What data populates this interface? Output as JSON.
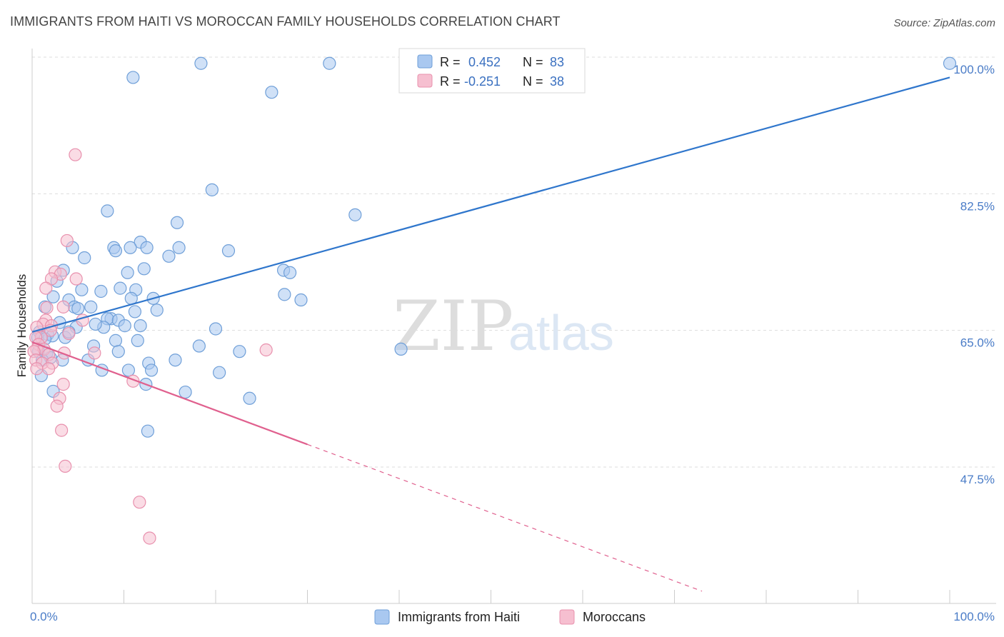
{
  "title": "IMMIGRANTS FROM HAITI VS MOROCCAN FAMILY HOUSEHOLDS CORRELATION CHART",
  "source": "Source: ZipAtlas.com",
  "watermark": {
    "zip": "ZIP",
    "atlas": "atlas"
  },
  "colors": {
    "haiti_fill": "#a9c8f0",
    "haiti_stroke": "#6f9fd8",
    "haiti_line": "#2f76cc",
    "moroccan_fill": "#f6bfd0",
    "moroccan_stroke": "#e890ad",
    "moroccan_line": "#e0608e",
    "grid": "#dddddd",
    "axis_label": "#4a7cc7"
  },
  "legend": {
    "haiti": {
      "r_label": "R =",
      "r_value": "0.452",
      "n_label": "N =",
      "n_value": "83"
    },
    "moroccan": {
      "r_label": "R =",
      "r_value": "-0.251",
      "n_label": "N =",
      "n_value": "38"
    }
  },
  "chart_data": {
    "type": "scatter",
    "title": "IMMIGRANTS FROM HAITI VS MOROCCAN FAMILY HOUSEHOLDS CORRELATION CHART",
    "xlabel": "",
    "ylabel": "Family Households",
    "xlim": [
      0,
      100
    ],
    "ylim": [
      30,
      100
    ],
    "x_tick_labels": [
      "0.0%",
      "100.0%"
    ],
    "y_ticks": [
      {
        "value": 100,
        "label": "100.0%"
      },
      {
        "value": 82.5,
        "label": "82.5%"
      },
      {
        "value": 65.0,
        "label": "65.0%"
      },
      {
        "value": 47.5,
        "label": "47.5%"
      }
    ],
    "legend_entries": [
      "Immigrants from Haiti",
      "Moroccans"
    ],
    "series": [
      {
        "name": "Immigrants from Haiti",
        "r": 0.452,
        "n": 83,
        "trend": {
          "x": [
            0,
            100
          ],
          "y": [
            64.8,
            97.4
          ],
          "dashed_extension": false
        },
        "points": [
          [
            18.4,
            99.2
          ],
          [
            32.4,
            99.2
          ],
          [
            100,
            99.2
          ],
          [
            11.0,
            97.4
          ],
          [
            26.1,
            95.5
          ],
          [
            19.6,
            83.0
          ],
          [
            8.2,
            80.3
          ],
          [
            35.2,
            79.8
          ],
          [
            15.8,
            78.8
          ],
          [
            11.8,
            76.3
          ],
          [
            4.4,
            75.6
          ],
          [
            8.9,
            75.6
          ],
          [
            9.1,
            75.2
          ],
          [
            10.7,
            75.6
          ],
          [
            12.5,
            75.6
          ],
          [
            16.0,
            75.6
          ],
          [
            21.4,
            75.2
          ],
          [
            5.7,
            74.3
          ],
          [
            14.9,
            74.5
          ],
          [
            3.4,
            72.7
          ],
          [
            12.2,
            72.9
          ],
          [
            10.4,
            72.4
          ],
          [
            27.4,
            72.7
          ],
          [
            28.1,
            72.4
          ],
          [
            2.7,
            71.3
          ],
          [
            9.6,
            70.4
          ],
          [
            5.4,
            70.2
          ],
          [
            11.3,
            70.2
          ],
          [
            7.5,
            70.0
          ],
          [
            27.5,
            69.6
          ],
          [
            2.3,
            69.3
          ],
          [
            4.0,
            68.9
          ],
          [
            10.8,
            69.1
          ],
          [
            13.2,
            69.1
          ],
          [
            29.3,
            68.9
          ],
          [
            1.4,
            68.0
          ],
          [
            4.6,
            68.0
          ],
          [
            6.4,
            68.0
          ],
          [
            5.0,
            67.8
          ],
          [
            11.2,
            67.4
          ],
          [
            13.6,
            67.6
          ],
          [
            8.6,
            66.5
          ],
          [
            8.2,
            66.5
          ],
          [
            9.4,
            66.3
          ],
          [
            10.1,
            65.6
          ],
          [
            11.8,
            65.6
          ],
          [
            4.8,
            65.4
          ],
          [
            7.8,
            65.4
          ],
          [
            20.0,
            65.2
          ],
          [
            0.8,
            64.8
          ],
          [
            1.7,
            64.5
          ],
          [
            2.2,
            64.3
          ],
          [
            0.6,
            64.1
          ],
          [
            3.6,
            64.1
          ],
          [
            1.4,
            63.9
          ],
          [
            9.1,
            63.7
          ],
          [
            11.5,
            63.7
          ],
          [
            6.7,
            63.0
          ],
          [
            18.2,
            63.0
          ],
          [
            22.6,
            62.3
          ],
          [
            0.7,
            62.3
          ],
          [
            1.6,
            62.1
          ],
          [
            2.0,
            61.5
          ],
          [
            9.4,
            62.3
          ],
          [
            1.1,
            61.2
          ],
          [
            6.1,
            61.2
          ],
          [
            12.7,
            60.8
          ],
          [
            3.3,
            61.2
          ],
          [
            15.6,
            61.2
          ],
          [
            7.6,
            59.9
          ],
          [
            10.5,
            59.9
          ],
          [
            13.0,
            59.9
          ],
          [
            20.4,
            59.6
          ],
          [
            40.2,
            62.6
          ],
          [
            1.0,
            59.2
          ],
          [
            12.4,
            58.1
          ],
          [
            2.3,
            57.2
          ],
          [
            16.7,
            57.1
          ],
          [
            23.7,
            56.3
          ],
          [
            12.6,
            52.1
          ],
          [
            4.0,
            64.8
          ],
          [
            3.0,
            66.0
          ],
          [
            6.9,
            65.8
          ]
        ]
      },
      {
        "name": "Moroccans",
        "r": -0.251,
        "n": 38,
        "trend": {
          "x": [
            0,
            30
          ],
          "y": [
            63.5,
            50.4
          ],
          "dashed_extension": true,
          "dash_to": [
            73.0,
            31.6
          ]
        },
        "points": [
          [
            4.7,
            87.5
          ],
          [
            3.8,
            76.5
          ],
          [
            2.5,
            72.5
          ],
          [
            3.1,
            72.2
          ],
          [
            2.1,
            71.6
          ],
          [
            4.8,
            71.6
          ],
          [
            1.5,
            70.4
          ],
          [
            3.4,
            68.0
          ],
          [
            1.6,
            67.9
          ],
          [
            1.5,
            66.3
          ],
          [
            5.5,
            66.3
          ],
          [
            1.2,
            65.8
          ],
          [
            2.1,
            65.6
          ],
          [
            0.5,
            65.4
          ],
          [
            2.0,
            65.0
          ],
          [
            4.0,
            64.6
          ],
          [
            1.0,
            64.1
          ],
          [
            0.4,
            64.1
          ],
          [
            0.7,
            63.2
          ],
          [
            0.5,
            62.6
          ],
          [
            1.3,
            62.6
          ],
          [
            0.2,
            62.3
          ],
          [
            3.5,
            62.1
          ],
          [
            1.8,
            61.9
          ],
          [
            6.8,
            62.1
          ],
          [
            25.5,
            62.5
          ],
          [
            0.4,
            61.2
          ],
          [
            1.1,
            60.8
          ],
          [
            2.2,
            60.8
          ],
          [
            0.5,
            60.1
          ],
          [
            1.8,
            60.1
          ],
          [
            11.0,
            58.5
          ],
          [
            3.4,
            58.1
          ],
          [
            3.0,
            56.3
          ],
          [
            2.7,
            55.3
          ],
          [
            3.2,
            52.2
          ],
          [
            3.6,
            47.6
          ],
          [
            11.7,
            43.0
          ]
        ],
        "extra_points": [
          [
            12.8,
            38.4
          ]
        ]
      }
    ]
  }
}
